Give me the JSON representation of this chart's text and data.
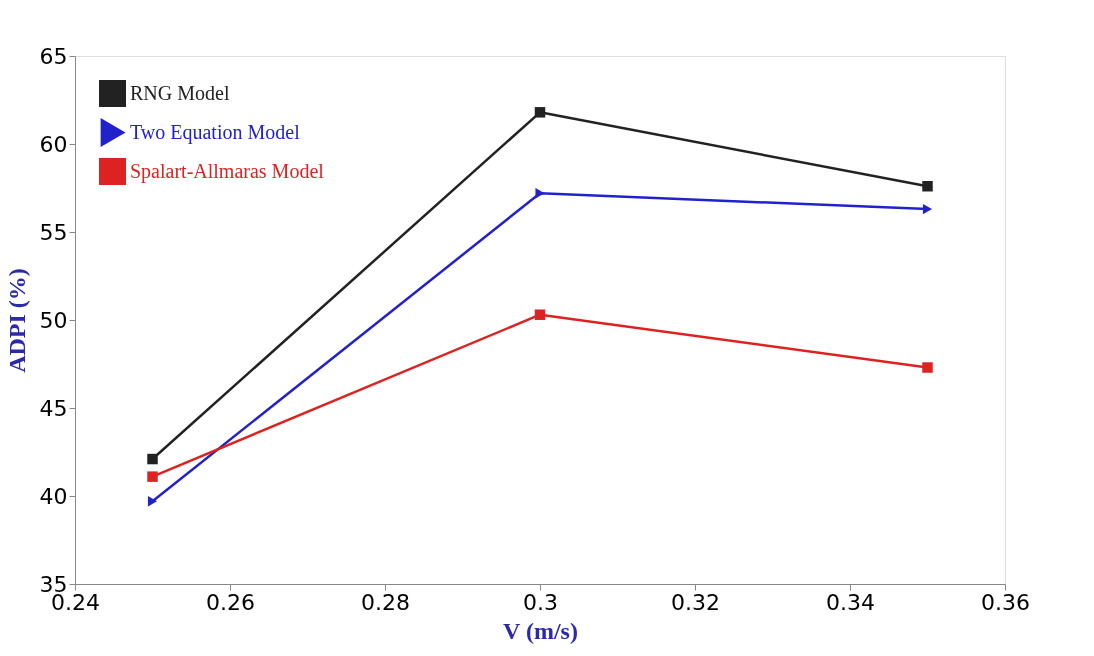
{
  "chart_data": {
    "type": "line",
    "xlabel": "V (m/s)",
    "ylabel": "ADPI (%)",
    "x": [
      0.25,
      0.3,
      0.35
    ],
    "series": [
      {
        "name": "RNG Model",
        "color": "#222222",
        "marker": "square",
        "values": [
          42.1,
          61.8,
          57.6
        ]
      },
      {
        "name": "Two Equation Model",
        "color": "#2222cc",
        "marker": "triangle",
        "values": [
          39.7,
          57.2,
          56.3
        ]
      },
      {
        "name": "Spalart-Allmaras Model",
        "color": "#dd2222",
        "marker": "square",
        "values": [
          41.1,
          50.3,
          47.3
        ]
      }
    ],
    "xlim": [
      0.24,
      0.36
    ],
    "xticks": [
      0.24,
      0.26,
      0.28,
      0.3,
      0.32,
      0.34,
      0.36
    ],
    "ylim": [
      35,
      65
    ],
    "yticks": [
      35,
      40,
      45,
      50,
      55,
      60,
      65
    ],
    "grid": false,
    "legend": "top left",
    "line_style": "solid"
  }
}
